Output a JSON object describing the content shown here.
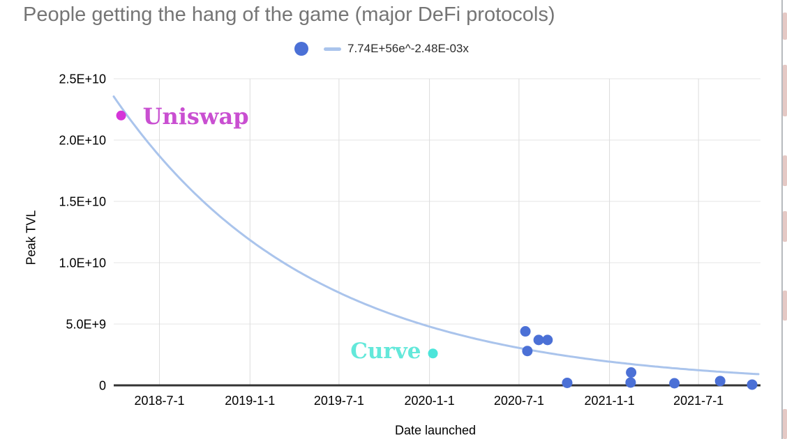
{
  "chart_data": {
    "type": "scatter",
    "title": "People getting the hang of the game (major DeFi protocols)",
    "xlabel": "Date launched",
    "ylabel": "Peak TVL",
    "grid": true,
    "legend_position": "top-center",
    "x_domain": [
      "2018-03-30",
      "2021-11-04"
    ],
    "y_domain": [
      0,
      25000000000
    ],
    "x_ticks": [
      {
        "label": "2018-7-1",
        "date": "2018-07-01"
      },
      {
        "label": "2019-1-1",
        "date": "2019-01-01"
      },
      {
        "label": "2019-7-1",
        "date": "2019-07-01"
      },
      {
        "label": "2020-1-1",
        "date": "2020-01-01"
      },
      {
        "label": "2020-7-1",
        "date": "2020-07-01"
      },
      {
        "label": "2021-1-1",
        "date": "2021-01-01"
      },
      {
        "label": "2021-7-1",
        "date": "2021-07-01"
      }
    ],
    "y_ticks": [
      {
        "label": "0",
        "value": 0
      },
      {
        "label": "5.0E+9",
        "value": 5000000000.0
      },
      {
        "label": "1.0E+10",
        "value": 10000000000.0
      },
      {
        "label": "1.5E+10",
        "value": 15000000000.0
      },
      {
        "label": "2.0E+10",
        "value": 20000000000.0
      },
      {
        "label": "2.5E+10",
        "value": 25000000000.0
      }
    ],
    "trendline": {
      "label": "7.74E+56e^-2.48E-03x",
      "coefficient": 7.74e+56,
      "decay_rate": 0.00248,
      "x_unit": "days_since_1899-12-30",
      "color": "#aac4ec"
    },
    "series": [
      {
        "name": "major DeFi protocols",
        "color": "#4b70d6",
        "points": [
          {
            "date": "2020-07-14",
            "value": 4400000000.0
          },
          {
            "date": "2020-07-18",
            "value": 2800000000.0
          },
          {
            "date": "2020-08-10",
            "value": 3700000000.0
          },
          {
            "date": "2020-08-28",
            "value": 3700000000.0
          },
          {
            "date": "2020-10-07",
            "value": 200000000.0
          },
          {
            "date": "2021-02-13",
            "value": 230000000.0
          },
          {
            "date": "2021-02-14",
            "value": 1050000000.0
          },
          {
            "date": "2021-05-13",
            "value": 170000000.0
          },
          {
            "date": "2021-08-14",
            "value": 350000000.0
          },
          {
            "date": "2021-10-18",
            "value": 60000000.0
          }
        ]
      }
    ],
    "annotated_points": [
      {
        "label": "Uniswap",
        "date": "2018-04-14",
        "value": 22000000000.0,
        "dot_color": "#d535d8",
        "label_color": "#c94fd1",
        "label_position": "right",
        "font_size": 32
      },
      {
        "label": "Curve",
        "date": "2020-01-08",
        "value": 2600000000.0,
        "dot_color": "#4be5da",
        "label_color": "#63e8da",
        "label_position": "left",
        "font_size": 31
      }
    ],
    "colors": {
      "title": "#757575",
      "tick_text": "#000000",
      "gridline_h": "#e4e4e4",
      "gridline_v": "#dcdcdc",
      "axis_line": "#333333"
    }
  }
}
